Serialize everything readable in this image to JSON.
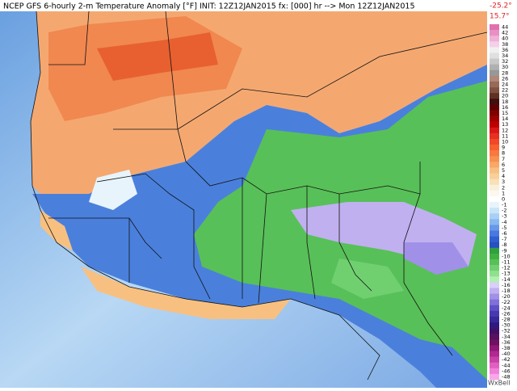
{
  "header": {
    "title": "NCEP GFS 6-hourly 2-m Temperature Anomaly [°F] INIT: 12Z12JAN2015 fx: [000] hr --> Mon 12Z12JAN2015",
    "min": "-25.2°",
    "max": "15.7°"
  },
  "colorbar": {
    "values": [
      44,
      42,
      40,
      38,
      36,
      34,
      32,
      30,
      28,
      26,
      24,
      22,
      20,
      18,
      16,
      15,
      14,
      13,
      12,
      11,
      10,
      9,
      8,
      7,
      6,
      5,
      4,
      3,
      2,
      1,
      0,
      -1,
      -2,
      -3,
      -4,
      -5,
      -6,
      -7,
      -8,
      -9,
      -10,
      -11,
      -12,
      -13,
      -14,
      -16,
      -18,
      -20,
      -22,
      -24,
      -26,
      -28,
      -30,
      -32,
      -34,
      -36,
      -38,
      -40,
      -42,
      -44,
      -46,
      -48
    ],
    "colors": [
      "#e070b0",
      "#e890c4",
      "#f0b0d8",
      "#f4d0e8",
      "#f0f0f0",
      "#e0e0e0",
      "#c8c8c8",
      "#b0b0b0",
      "#989898",
      "#b08878",
      "#986858",
      "#805040",
      "#603020",
      "#401010",
      "#600000",
      "#800000",
      "#a00000",
      "#c00000",
      "#d81818",
      "#e83020",
      "#f04828",
      "#f86030",
      "#f87840",
      "#f89050",
      "#f8a868",
      "#f8c080",
      "#f8d098",
      "#f8e0b8",
      "#f8f0d8",
      "#fcf8f0",
      "#ffffff",
      "#e8f4fc",
      "#c8e4f8",
      "#a8d0f4",
      "#88b8f0",
      "#6898e8",
      "#4878e0",
      "#3060d0",
      "#2850c0",
      "#30a040",
      "#40b040",
      "#58c058",
      "#70d070",
      "#90e090",
      "#b0f0b0",
      "#d8d0f8",
      "#c0b0f0",
      "#a090e8",
      "#8070d8",
      "#6050c8",
      "#4838b0",
      "#382898",
      "#301880",
      "#401068",
      "#581060",
      "#701060",
      "#901878",
      "#b02890",
      "#c840a8",
      "#e060c0",
      "#f080d8",
      "#f8a8e8"
    ]
  },
  "footer": {
    "brand": "WxBell"
  }
}
